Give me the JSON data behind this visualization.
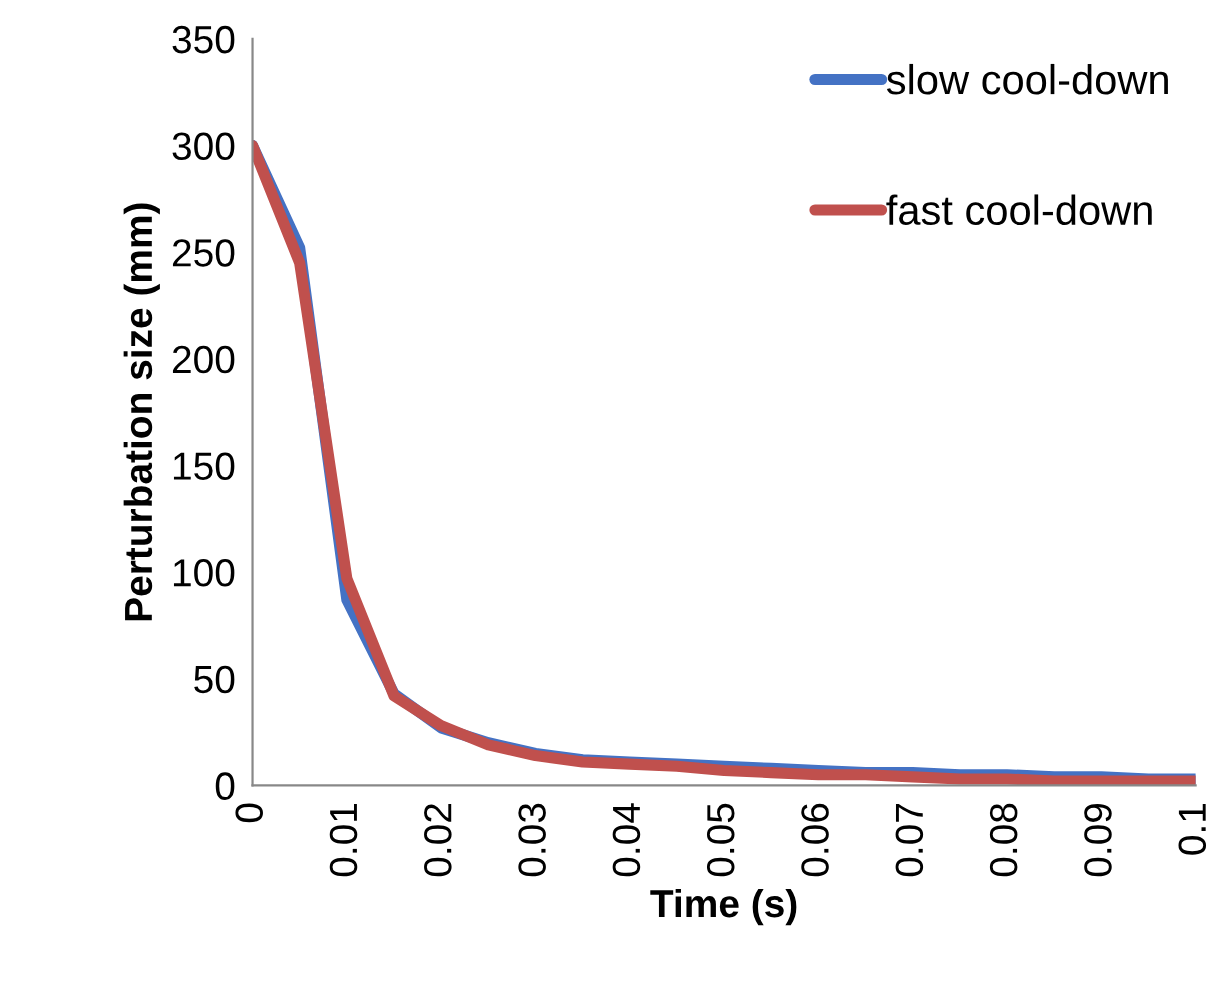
{
  "chart_data": {
    "type": "line",
    "xlabel": "Time (s)",
    "ylabel": "Perturbation size (mm)",
    "x": [
      0,
      0.005,
      0.01,
      0.015,
      0.02,
      0.025,
      0.03,
      0.035,
      0.04,
      0.045,
      0.05,
      0.055,
      0.06,
      0.065,
      0.07,
      0.075,
      0.08,
      0.085,
      0.09,
      0.095,
      0.1
    ],
    "series": [
      {
        "name": "slow cool-down",
        "color": "#4472c4",
        "values": [
          300,
          252,
          87,
          43,
          27,
          20,
          15,
          12,
          11,
          10,
          9,
          8,
          7,
          6,
          6,
          5,
          5,
          4,
          4,
          3,
          3
        ]
      },
      {
        "name": "fast cool-down",
        "color": "#c0504d",
        "values": [
          300,
          245,
          97,
          42,
          28,
          19,
          14,
          11,
          10,
          9,
          7,
          6,
          5,
          5,
          4,
          3,
          3,
          2,
          2,
          2,
          2
        ]
      }
    ],
    "xlim": [
      0,
      0.1
    ],
    "xticks": [
      0,
      0.01,
      0.02,
      0.03,
      0.04,
      0.05,
      0.06,
      0.07,
      0.08,
      0.09,
      0.1
    ],
    "ylim": [
      0,
      350
    ],
    "yticks": [
      0,
      50,
      100,
      150,
      200,
      250,
      300,
      350
    ],
    "grid": false,
    "legend": "top right",
    "marker": "none",
    "line_style": "solid"
  }
}
